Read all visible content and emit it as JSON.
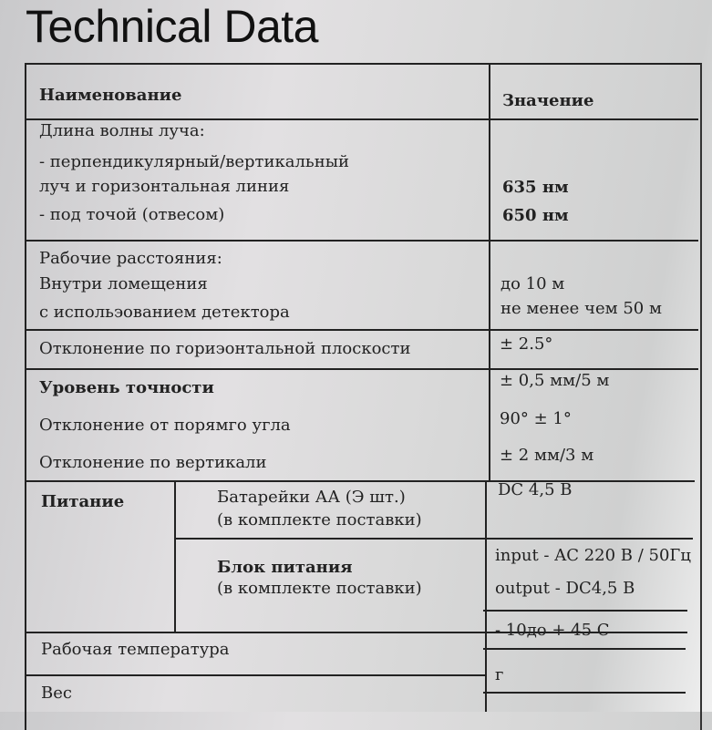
{
  "title": "Technical Data",
  "header": {
    "name": "Наименование",
    "value": "Значение"
  },
  "rows": {
    "wavelength": {
      "label": [
        "Длина волны луча:",
        "- перпендикулярный/вертикальный",
        "луч и горизонтальная линия",
        "- под точой (отвесом)"
      ],
      "values": [
        "635 нм",
        "650 нм"
      ]
    },
    "distance": {
      "label": [
        "Рабочие расстояния:",
        "Внутри ломещения",
        "с испольэованием детектора"
      ],
      "values": [
        "до 10 м",
        "не менее чем 50 м"
      ]
    },
    "horizontal": {
      "label": "Отклонение по гориэонтальной плоскости",
      "value": "± 2.5°"
    },
    "accuracy": {
      "label": "Уровень точности",
      "value": "± 0,5 мм/5 м",
      "right_angle_label": "Отклонение от порямго угла",
      "right_angle_value": "90° ± 1°",
      "vertical_label": "Отклонение по вертикали",
      "vertical_value": "± 2 мм/3 м"
    },
    "power": {
      "label": "Питание",
      "battery": [
        "Батарейки АА (Э шт.)",
        "(в комплекте поставки)"
      ],
      "battery_value": "DC 4,5 В",
      "adapter": [
        "Блок питания",
        "(в комплекте поставки)"
      ],
      "adapter_values": [
        "input - AC 220 В / 50Гц",
        "output - DC4,5 В"
      ]
    },
    "temperature": {
      "label": "Рабочая температура",
      "value": "- 10до + 45  С"
    },
    "weight": {
      "label": "Вес",
      "value": "г"
    }
  }
}
